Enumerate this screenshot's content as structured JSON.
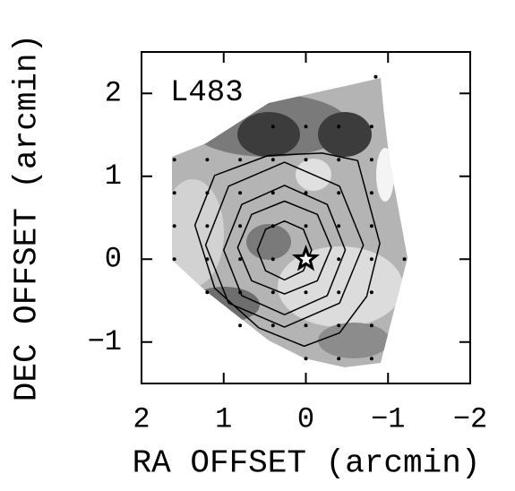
{
  "chart_data": {
    "type": "contour",
    "annotation": "L483",
    "xlabel": "RA OFFSET (arcmin)",
    "ylabel": "DEC OFFSET (arcmin)",
    "xlim": [
      2,
      -2
    ],
    "ylim": [
      -1.5,
      2.5
    ],
    "xticks": [
      2,
      1,
      0,
      {
        "value": -1,
        "label": "−1"
      },
      {
        "value": -2,
        "label": "−2"
      }
    ],
    "yticks": [
      2,
      1,
      0,
      {
        "value": -1,
        "label": "−1"
      }
    ],
    "color": "#000000",
    "contours": [
      {
        "x": [
          -0.07,
          0.03,
          0.26,
          0.49,
          0.59,
          0.49,
          0.26,
          0.03
        ],
        "y": [
          0.11,
          -0.14,
          -0.25,
          -0.14,
          0.11,
          0.36,
          0.46,
          0.36
        ]
      },
      {
        "x": [
          -0.31,
          -0.14,
          0.26,
          0.66,
          0.83,
          0.66,
          0.26,
          -0.14
        ],
        "y": [
          0.14,
          -0.26,
          -0.42,
          -0.26,
          0.14,
          0.54,
          0.7,
          0.54
        ]
      },
      {
        "x": [
          -0.48,
          -0.26,
          0.26,
          0.78,
          1.0,
          0.78,
          0.26,
          -0.26
        ],
        "y": [
          0.11,
          -0.44,
          -0.67,
          -0.44,
          0.11,
          0.66,
          0.89,
          0.66
        ]
      },
      {
        "x": [
          -0.7,
          -0.41,
          0.26,
          0.94,
          1.22,
          0.94,
          0.26,
          -0.41
        ],
        "y": [
          0.17,
          -0.53,
          -0.82,
          -0.53,
          0.17,
          0.88,
          1.17,
          0.88
        ]
      },
      {
        "x": [
          -0.9,
          -0.74,
          -0.41,
          0.02,
          0.57,
          1.11,
          1.35,
          1.11,
          0.46,
          -0.2,
          -0.63
        ],
        "y": [
          0.19,
          -0.45,
          -0.89,
          -1.05,
          -0.83,
          -0.35,
          0.41,
          1.01,
          1.25,
          1.28,
          1.19
        ]
      }
    ],
    "points": {
      "x": [
        -0.85,
        0.4,
        0,
        -0.4,
        -0.8,
        1.6,
        1.2,
        0.8,
        0.4,
        0,
        -0.4,
        -0.8,
        1.6,
        1.2,
        0.8,
        0.4,
        0,
        -0.4,
        -0.8,
        1.6,
        1.2,
        0.8,
        0.4,
        0,
        -0.4,
        -0.8,
        1.6,
        1.2,
        0.8,
        0.4,
        -0.4,
        -0.8,
        -1.2,
        1.2,
        0.8,
        0.4,
        0,
        -0.4,
        -0.8,
        0.8,
        0.4,
        0,
        -0.4,
        -0.8,
        0,
        -0.4,
        -0.8
      ],
      "y": [
        2.2,
        1.6,
        1.6,
        1.6,
        1.6,
        1.2,
        1.2,
        1.2,
        1.2,
        1.2,
        1.2,
        1.2,
        0.8,
        0.8,
        0.8,
        0.8,
        0.8,
        0.8,
        0.8,
        0.4,
        0.4,
        0.4,
        0.4,
        0.4,
        0.4,
        0.4,
        0,
        0,
        0,
        0,
        0,
        0,
        0,
        -0.4,
        -0.4,
        -0.4,
        -0.4,
        -0.4,
        -0.4,
        -0.8,
        -0.8,
        -0.8,
        -0.8,
        -0.8,
        -1.2,
        -1.2,
        -1.2
      ]
    },
    "source": {
      "x": [
        0
      ],
      "y": [
        0
      ]
    }
  }
}
